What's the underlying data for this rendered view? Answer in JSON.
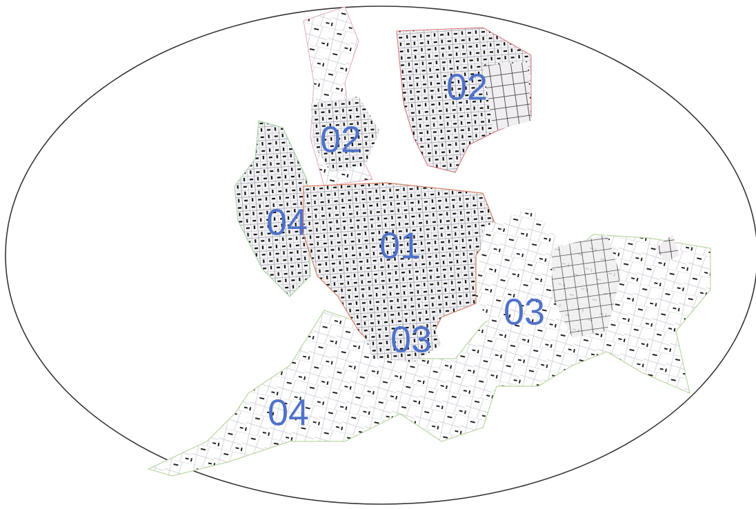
{
  "zones": [
    {
      "label": "02"
    },
    {
      "label": "02"
    },
    {
      "label": "04"
    },
    {
      "label": "01"
    },
    {
      "label": "03"
    },
    {
      "label": "03"
    },
    {
      "label": "04"
    }
  ]
}
